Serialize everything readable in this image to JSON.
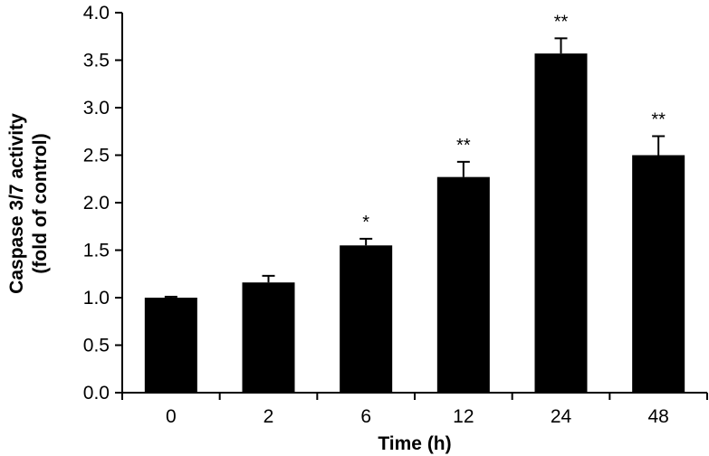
{
  "chart_data": {
    "type": "bar",
    "title": "",
    "xlabel": "Time (h)",
    "ylabel_line1": "Caspase 3/7 activity",
    "ylabel_line2": "(fold of control)",
    "ylim": [
      0,
      4
    ],
    "yticks": [
      "0.0",
      "0.5",
      "1.0",
      "1.5",
      "2.0",
      "2.5",
      "3.0",
      "3.5",
      "4.0"
    ],
    "categories": [
      "0",
      "2",
      "6",
      "12",
      "24",
      "48"
    ],
    "values": [
      1.0,
      1.16,
      1.55,
      2.27,
      3.57,
      2.5
    ],
    "error": [
      0.01,
      0.07,
      0.07,
      0.16,
      0.16,
      0.2
    ],
    "significance": [
      "",
      "",
      "*",
      "**",
      "**",
      "**"
    ],
    "bar_color": "#000000",
    "grid": false,
    "legend": "none"
  }
}
